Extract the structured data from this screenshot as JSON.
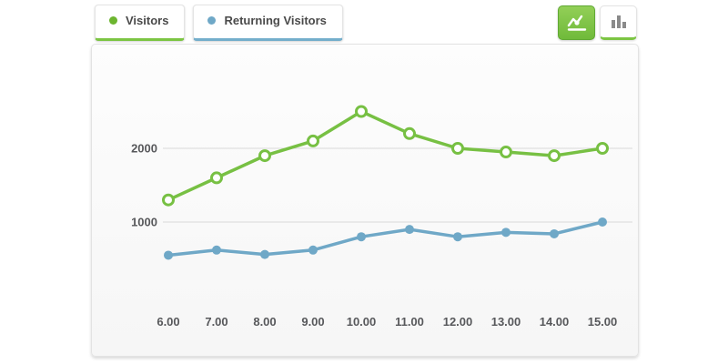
{
  "legend": {
    "tabs": [
      {
        "label": "Visitors",
        "dot_color": "#6cb52f",
        "underline_color": "#7cc543"
      },
      {
        "label": "Returning Visitors",
        "dot_color": "#6fa8c7",
        "underline_color": "#74aecb"
      }
    ]
  },
  "toolbar": {
    "buttons": [
      {
        "name": "line-chart-view",
        "active": true
      },
      {
        "name": "bar-chart-view",
        "active": false
      }
    ],
    "active_color": "#70ba3a",
    "inactive_underline_color": "#7cc543"
  },
  "colors": {
    "accent_green": "#77c043",
    "accent_blue": "#6fa8c7",
    "grid": "#d9d9d9",
    "tick_text": "#57585b",
    "bar_icon_gray": "#8a8a8a"
  },
  "chart_data": {
    "type": "line",
    "x_labels": [
      "6.00",
      "7.00",
      "8.00",
      "9.00",
      "10.00",
      "11.00",
      "12.00",
      "13.00",
      "14.00",
      "15.00"
    ],
    "series": [
      {
        "name": "Visitors",
        "color": "#77c043",
        "marker": "hollow-circle",
        "values": [
          1300,
          1600,
          1900,
          2100,
          2500,
          2200,
          2000,
          1950,
          1900,
          2000
        ]
      },
      {
        "name": "Returning Visitors",
        "color": "#6fa8c7",
        "marker": "solid-circle",
        "values": [
          550,
          620,
          560,
          620,
          800,
          900,
          800,
          860,
          840,
          1000
        ]
      }
    ],
    "y_ticks": [
      {
        "value": 1000,
        "label": "1000"
      },
      {
        "value": 2000,
        "label": "2000"
      }
    ],
    "ylim": [
      0,
      2700
    ],
    "grid": "horizontal",
    "legend_position": "top-left"
  }
}
